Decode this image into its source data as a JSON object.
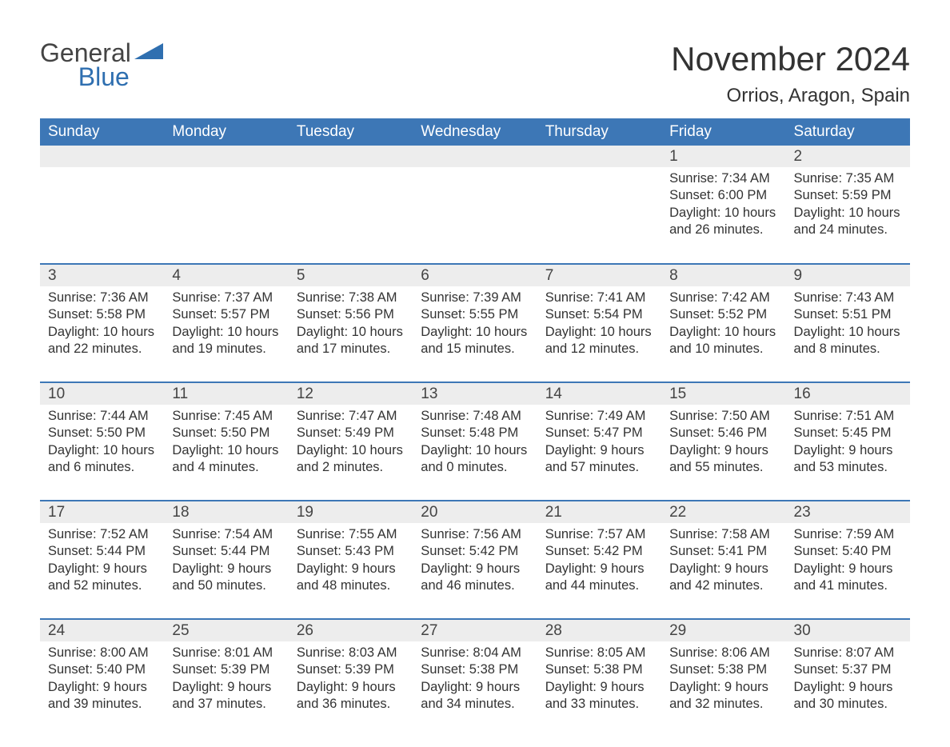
{
  "logo": {
    "line1": "General",
    "line2": "Blue",
    "tri_color": "#2f6fb0"
  },
  "title": "November 2024",
  "location": "Orrios, Aragon, Spain",
  "colors": {
    "header_bg": "#3d77b6",
    "header_text": "#ffffff",
    "daynum_bg": "#ededed",
    "border": "#3d77b6",
    "body_text": "#333333",
    "page_bg": "#ffffff"
  },
  "weekdays": [
    "Sunday",
    "Monday",
    "Tuesday",
    "Wednesday",
    "Thursday",
    "Friday",
    "Saturday"
  ],
  "labels": {
    "sunrise": "Sunrise",
    "sunset": "Sunset",
    "daylight": "Daylight"
  },
  "weeks": [
    [
      null,
      null,
      null,
      null,
      null,
      {
        "n": 1,
        "sunrise": "7:34 AM",
        "sunset": "6:00 PM",
        "daylight": "10 hours and 26 minutes."
      },
      {
        "n": 2,
        "sunrise": "7:35 AM",
        "sunset": "5:59 PM",
        "daylight": "10 hours and 24 minutes."
      }
    ],
    [
      {
        "n": 3,
        "sunrise": "7:36 AM",
        "sunset": "5:58 PM",
        "daylight": "10 hours and 22 minutes."
      },
      {
        "n": 4,
        "sunrise": "7:37 AM",
        "sunset": "5:57 PM",
        "daylight": "10 hours and 19 minutes."
      },
      {
        "n": 5,
        "sunrise": "7:38 AM",
        "sunset": "5:56 PM",
        "daylight": "10 hours and 17 minutes."
      },
      {
        "n": 6,
        "sunrise": "7:39 AM",
        "sunset": "5:55 PM",
        "daylight": "10 hours and 15 minutes."
      },
      {
        "n": 7,
        "sunrise": "7:41 AM",
        "sunset": "5:54 PM",
        "daylight": "10 hours and 12 minutes."
      },
      {
        "n": 8,
        "sunrise": "7:42 AM",
        "sunset": "5:52 PM",
        "daylight": "10 hours and 10 minutes."
      },
      {
        "n": 9,
        "sunrise": "7:43 AM",
        "sunset": "5:51 PM",
        "daylight": "10 hours and 8 minutes."
      }
    ],
    [
      {
        "n": 10,
        "sunrise": "7:44 AM",
        "sunset": "5:50 PM",
        "daylight": "10 hours and 6 minutes."
      },
      {
        "n": 11,
        "sunrise": "7:45 AM",
        "sunset": "5:50 PM",
        "daylight": "10 hours and 4 minutes."
      },
      {
        "n": 12,
        "sunrise": "7:47 AM",
        "sunset": "5:49 PM",
        "daylight": "10 hours and 2 minutes."
      },
      {
        "n": 13,
        "sunrise": "7:48 AM",
        "sunset": "5:48 PM",
        "daylight": "10 hours and 0 minutes."
      },
      {
        "n": 14,
        "sunrise": "7:49 AM",
        "sunset": "5:47 PM",
        "daylight": "9 hours and 57 minutes."
      },
      {
        "n": 15,
        "sunrise": "7:50 AM",
        "sunset": "5:46 PM",
        "daylight": "9 hours and 55 minutes."
      },
      {
        "n": 16,
        "sunrise": "7:51 AM",
        "sunset": "5:45 PM",
        "daylight": "9 hours and 53 minutes."
      }
    ],
    [
      {
        "n": 17,
        "sunrise": "7:52 AM",
        "sunset": "5:44 PM",
        "daylight": "9 hours and 52 minutes."
      },
      {
        "n": 18,
        "sunrise": "7:54 AM",
        "sunset": "5:44 PM",
        "daylight": "9 hours and 50 minutes."
      },
      {
        "n": 19,
        "sunrise": "7:55 AM",
        "sunset": "5:43 PM",
        "daylight": "9 hours and 48 minutes."
      },
      {
        "n": 20,
        "sunrise": "7:56 AM",
        "sunset": "5:42 PM",
        "daylight": "9 hours and 46 minutes."
      },
      {
        "n": 21,
        "sunrise": "7:57 AM",
        "sunset": "5:42 PM",
        "daylight": "9 hours and 44 minutes."
      },
      {
        "n": 22,
        "sunrise": "7:58 AM",
        "sunset": "5:41 PM",
        "daylight": "9 hours and 42 minutes."
      },
      {
        "n": 23,
        "sunrise": "7:59 AM",
        "sunset": "5:40 PM",
        "daylight": "9 hours and 41 minutes."
      }
    ],
    [
      {
        "n": 24,
        "sunrise": "8:00 AM",
        "sunset": "5:40 PM",
        "daylight": "9 hours and 39 minutes."
      },
      {
        "n": 25,
        "sunrise": "8:01 AM",
        "sunset": "5:39 PM",
        "daylight": "9 hours and 37 minutes."
      },
      {
        "n": 26,
        "sunrise": "8:03 AM",
        "sunset": "5:39 PM",
        "daylight": "9 hours and 36 minutes."
      },
      {
        "n": 27,
        "sunrise": "8:04 AM",
        "sunset": "5:38 PM",
        "daylight": "9 hours and 34 minutes."
      },
      {
        "n": 28,
        "sunrise": "8:05 AM",
        "sunset": "5:38 PM",
        "daylight": "9 hours and 33 minutes."
      },
      {
        "n": 29,
        "sunrise": "8:06 AM",
        "sunset": "5:38 PM",
        "daylight": "9 hours and 32 minutes."
      },
      {
        "n": 30,
        "sunrise": "8:07 AM",
        "sunset": "5:37 PM",
        "daylight": "9 hours and 30 minutes."
      }
    ]
  ]
}
